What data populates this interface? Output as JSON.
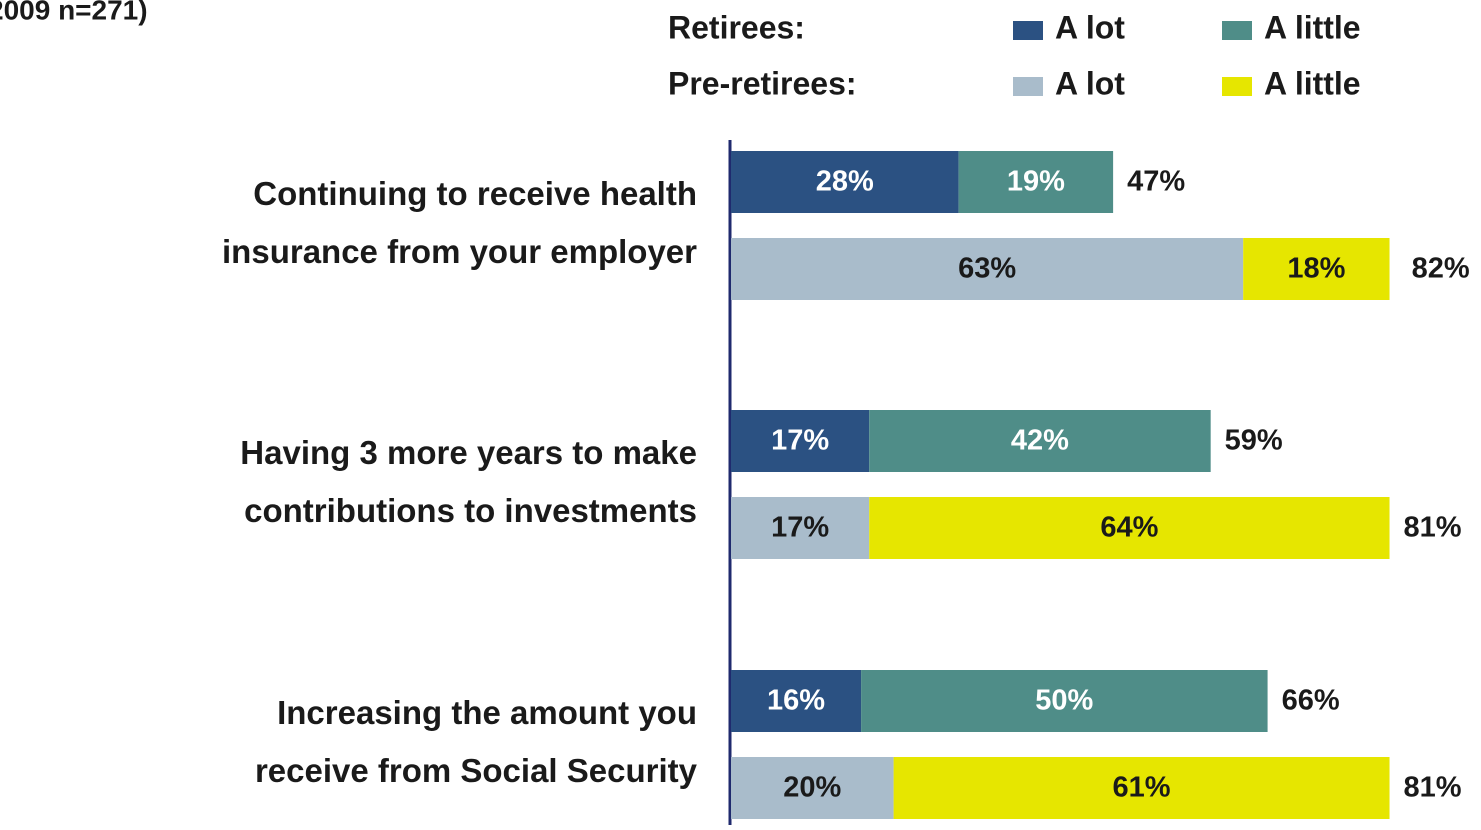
{
  "chart_data": {
    "type": "bar",
    "orientation": "horizontal",
    "stacked": true,
    "subtitle": "2009 n=271)",
    "xlim": [
      0,
      100
    ],
    "categories": [
      [
        "Continuing to receive health",
        "insurance from your employer"
      ],
      [
        "Having 3 more years to make",
        "contributions to investments"
      ],
      [
        "Increasing the amount you",
        "receive from Social Security"
      ]
    ],
    "groups": [
      {
        "name": "Retirees:",
        "series": [
          {
            "name": "A lot",
            "color": "#2b5182",
            "values": [
              28,
              17,
              16
            ],
            "value_labels": [
              "28%",
              "17%",
              "16%"
            ]
          },
          {
            "name": "A little",
            "color": "#4f8d88",
            "values": [
              19,
              42,
              50
            ],
            "value_labels": [
              "19%",
              "42%",
              "50%"
            ]
          }
        ],
        "totals": [
          47,
          59,
          66
        ],
        "total_labels": [
          "47%",
          "59%",
          "66%"
        ]
      },
      {
        "name": "Pre-retirees:",
        "series": [
          {
            "name": "A lot",
            "color": "#a9bccb",
            "values": [
              63,
              17,
              20
            ],
            "value_labels": [
              "63%",
              "17%",
              "20%"
            ]
          },
          {
            "name": "A little",
            "color": "#e6e600",
            "values": [
              18,
              64,
              61
            ],
            "value_labels": [
              "18%",
              "64%",
              "61%"
            ]
          }
        ],
        "totals": [
          82,
          81,
          81
        ],
        "total_labels": [
          "82%",
          "81%",
          "81%"
        ]
      }
    ]
  }
}
